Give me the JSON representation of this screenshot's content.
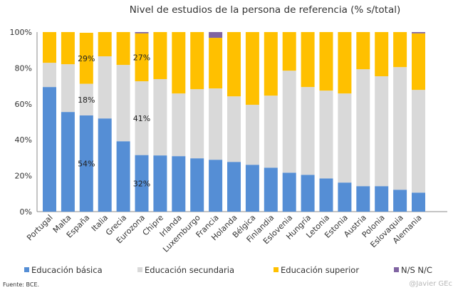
{
  "chart_data": {
    "type": "bar",
    "stacked": true,
    "title": "Nivel de estudios de la persona de referencia (% s/total)",
    "xlabel": "",
    "ylabel": "",
    "ylim": [
      0,
      100
    ],
    "yticks": [
      "0%",
      "20%",
      "40%",
      "60%",
      "80%",
      "100%"
    ],
    "grid": false,
    "legend_position": "bottom",
    "categories": [
      "Portugal",
      "Malta",
      "España",
      "Italia",
      "Grecia",
      "Eurozona",
      "Chipre",
      "Irlanda",
      "Luxemburgo",
      "Francia",
      "Holanda",
      "Bélgica",
      "Finlandia",
      "Eslovenia",
      "Hungría",
      "Letonia",
      "Estonia",
      "Austria",
      "Polonia",
      "Eslovaquia",
      "Alemania"
    ],
    "series": [
      {
        "name": "Educación básica",
        "color": "#558ed5",
        "values": [
          69.4,
          55.5,
          53.6,
          51.9,
          39.2,
          31.5,
          31.3,
          30.9,
          29.7,
          28.9,
          27.7,
          26.1,
          24.5,
          21.7,
          20.5,
          18.5,
          16.2,
          14.2,
          14.2,
          12.2,
          10.6
        ]
      },
      {
        "name": "Educación secundaria",
        "color": "#d9d9d9",
        "values": [
          13.5,
          26.6,
          17.6,
          34.6,
          42.5,
          41.1,
          42.5,
          34.9,
          38.5,
          39.7,
          36.5,
          33.4,
          40.1,
          56.8,
          48.9,
          48.9,
          49.6,
          65.1,
          61.2,
          68.3,
          57.2
        ]
      },
      {
        "name": "Educación superior",
        "color": "#ffc000",
        "values": [
          17.1,
          17.9,
          28.4,
          13.5,
          18.3,
          26.7,
          26.2,
          34.2,
          31.8,
          28.2,
          35.8,
          40.5,
          35.4,
          21.5,
          30.6,
          32.6,
          34.2,
          20.7,
          24.6,
          19.5,
          31.5
        ]
      },
      {
        "name": "N/S N/C",
        "color": "#8064a2",
        "values": [
          0,
          0,
          0,
          0,
          0,
          0.7,
          0,
          0,
          0,
          3.2,
          0,
          0,
          0,
          0,
          0,
          0,
          0,
          0,
          0,
          0,
          0.7
        ]
      }
    ],
    "data_labels": [
      {
        "category": "España",
        "series": "Educación básica",
        "text": "54%"
      },
      {
        "category": "España",
        "series": "Educación secundaria",
        "text": "18%"
      },
      {
        "category": "España",
        "series": "Educación superior",
        "text": "29%"
      },
      {
        "category": "Eurozona",
        "series": "Educación básica",
        "text": "32%"
      },
      {
        "category": "Eurozona",
        "series": "Educación secundaria",
        "text": "41%"
      },
      {
        "category": "Eurozona",
        "series": "Educación superior",
        "text": "27%"
      }
    ]
  },
  "source": "Fuente: BCE.",
  "credit": "@Javier GEc"
}
